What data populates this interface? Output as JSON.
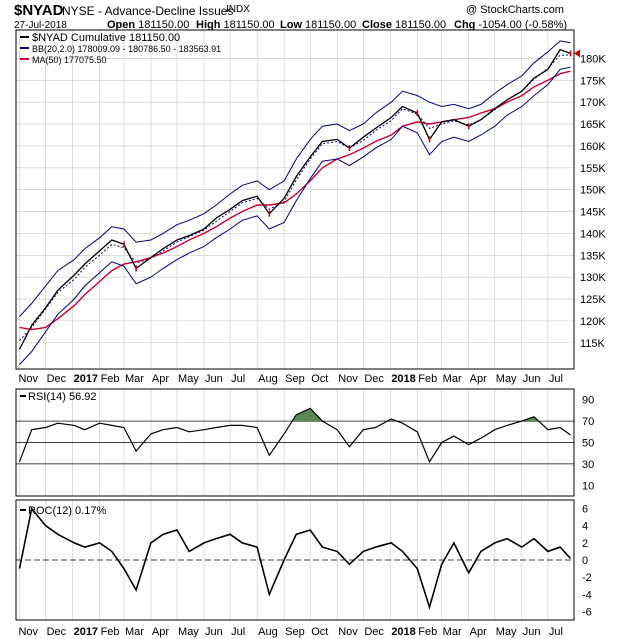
{
  "header": {
    "symbol": "$NYAD",
    "name": "NYSE - Advance-Decline Issues",
    "exchange": "INDX",
    "brand": "@ StockCharts.com",
    "date": "27-Jul-2018",
    "open_label": "Open",
    "open": "181150.00",
    "high_label": "High",
    "high": "181150.00",
    "low_label": "Low",
    "low": "181150.00",
    "close_label": "Close",
    "close": "181150.00",
    "chg_label": "Chg",
    "chg": "-1054.00 (-0.58%)"
  },
  "colors": {
    "price": "#000000",
    "down_bar": "#cc0000",
    "bollinger": "#000080",
    "ma": "#cc0033",
    "rsi_fill": "#5a8a50",
    "grid": "#c8c8c8"
  },
  "chart_data": [
    {
      "type": "line",
      "panel": "price",
      "x_labels": [
        "Nov",
        "Dec",
        "2017",
        "Feb",
        "Mar",
        "Apr",
        "May",
        "Jun",
        "Jul",
        "Aug",
        "Sep",
        "Oct",
        "Nov",
        "Dec",
        "2018",
        "Feb",
        "Mar",
        "Apr",
        "May",
        "Jun",
        "Jul"
      ],
      "bold_x_labels": [
        "2017",
        "2018"
      ],
      "y_ticks": [
        115000,
        120000,
        125000,
        130000,
        135000,
        140000,
        145000,
        150000,
        155000,
        160000,
        165000,
        170000,
        175000,
        180000
      ],
      "y_tick_labels": [
        "115K",
        "120K",
        "125K",
        "130K",
        "135K",
        "140K",
        "145K",
        "150K",
        "155K",
        "160K",
        "165K",
        "170K",
        "175K",
        "180K"
      ],
      "ylim": [
        109000,
        186500
      ],
      "legend": [
        "$NYAD Cumulative 181150.00",
        "BB(20,2.0) 178009.09 - 180786.50 - 183563.91",
        "MA(50) 177075.50"
      ],
      "dates": [
        "2016-11-01",
        "2016-11-15",
        "2016-12-01",
        "2016-12-15",
        "2017-01-03",
        "2017-01-15",
        "2017-02-01",
        "2017-02-15",
        "2017-03-01",
        "2017-03-15",
        "2017-04-01",
        "2017-04-15",
        "2017-05-01",
        "2017-05-15",
        "2017-06-01",
        "2017-06-15",
        "2017-07-01",
        "2017-07-15",
        "2017-08-01",
        "2017-08-15",
        "2017-09-01",
        "2017-09-15",
        "2017-10-01",
        "2017-10-15",
        "2017-11-01",
        "2017-11-15",
        "2017-12-01",
        "2017-12-15",
        "2018-01-02",
        "2018-01-15",
        "2018-02-01",
        "2018-02-15",
        "2018-03-01",
        "2018-03-15",
        "2018-04-01",
        "2018-04-15",
        "2018-05-01",
        "2018-05-15",
        "2018-06-01",
        "2018-06-15",
        "2018-07-01",
        "2018-07-15",
        "2018-07-27"
      ],
      "series": [
        {
          "name": "$NYAD Cumulative",
          "values": [
            113500,
            119000,
            123000,
            127000,
            130500,
            133000,
            136000,
            138500,
            137500,
            132000,
            134500,
            136500,
            138500,
            139500,
            141000,
            143500,
            145500,
            147500,
            148500,
            144500,
            148000,
            153000,
            157500,
            161000,
            161500,
            159500,
            162000,
            164000,
            166500,
            169000,
            167500,
            161500,
            165500,
            166000,
            164500,
            166000,
            168500,
            170500,
            172500,
            175500,
            177500,
            182000,
            181150
          ]
        },
        {
          "name": "BB Upper",
          "values": [
            121000,
            124000,
            128000,
            131500,
            134000,
            136500,
            139000,
            141500,
            141000,
            138000,
            138500,
            140000,
            142000,
            143000,
            144500,
            146500,
            149000,
            151000,
            152000,
            150000,
            152000,
            157000,
            161500,
            164500,
            165000,
            163500,
            165000,
            167500,
            170000,
            172500,
            171500,
            170000,
            169000,
            169500,
            168500,
            169500,
            172000,
            174000,
            176000,
            179000,
            181500,
            184000,
            183564
          ]
        },
        {
          "name": "BB Lower",
          "values": [
            110000,
            113000,
            117500,
            121500,
            125000,
            128000,
            131000,
            133500,
            132500,
            128500,
            130000,
            132000,
            134000,
            135500,
            137000,
            139000,
            141000,
            143000,
            144000,
            141000,
            142500,
            147500,
            152500,
            156500,
            157000,
            155500,
            157500,
            159500,
            161500,
            164500,
            163000,
            158000,
            161000,
            162000,
            161000,
            162500,
            164500,
            167000,
            169000,
            171500,
            174000,
            177500,
            178009
          ]
        },
        {
          "name": "MA(50)",
          "values": [
            118500,
            118000,
            118500,
            120500,
            123500,
            126000,
            129000,
            131500,
            133000,
            133500,
            134500,
            135500,
            137000,
            138500,
            140000,
            141500,
            143500,
            145000,
            146500,
            146500,
            147000,
            149000,
            152000,
            155000,
            157000,
            158000,
            159500,
            161000,
            162500,
            164500,
            165500,
            165000,
            165500,
            166000,
            166500,
            167500,
            168500,
            170000,
            171500,
            173500,
            175000,
            176500,
            177075
          ]
        }
      ]
    },
    {
      "type": "line",
      "panel": "rsi",
      "legend": "RSI(14) 56.92",
      "y_ticks": [
        10,
        30,
        50,
        70,
        90
      ],
      "ylim": [
        0,
        100
      ],
      "reference_lines": [
        30,
        50,
        70
      ],
      "fill_above": 70,
      "dates": [
        "2016-11-01",
        "2016-11-15",
        "2016-12-01",
        "2016-12-15",
        "2017-01-03",
        "2017-01-15",
        "2017-02-01",
        "2017-02-15",
        "2017-03-01",
        "2017-03-15",
        "2017-04-01",
        "2017-04-15",
        "2017-05-01",
        "2017-05-15",
        "2017-06-01",
        "2017-06-15",
        "2017-07-01",
        "2017-07-15",
        "2017-08-01",
        "2017-08-15",
        "2017-09-01",
        "2017-09-15",
        "2017-10-01",
        "2017-10-15",
        "2017-11-01",
        "2017-11-15",
        "2017-12-01",
        "2017-12-15",
        "2018-01-02",
        "2018-01-15",
        "2018-02-01",
        "2018-02-15",
        "2018-03-01",
        "2018-03-15",
        "2018-04-01",
        "2018-04-15",
        "2018-05-01",
        "2018-05-15",
        "2018-06-01",
        "2018-06-15",
        "2018-07-01",
        "2018-07-15",
        "2018-07-27"
      ],
      "values": [
        32,
        62,
        64,
        68,
        66,
        62,
        68,
        66,
        64,
        42,
        58,
        62,
        64,
        60,
        62,
        64,
        66,
        66,
        64,
        38,
        58,
        76,
        82,
        70,
        62,
        46,
        62,
        64,
        72,
        68,
        60,
        32,
        50,
        56,
        48,
        54,
        62,
        66,
        70,
        74,
        62,
        64,
        57
      ]
    },
    {
      "type": "line",
      "panel": "roc",
      "legend": "ROC(12) 0.17%",
      "y_ticks": [
        -6,
        -4,
        -2,
        0,
        2,
        4,
        6
      ],
      "ylim": [
        -7,
        7
      ],
      "reference_lines": [
        0
      ],
      "dates": [
        "2016-11-01",
        "2016-11-15",
        "2016-12-01",
        "2016-12-15",
        "2017-01-03",
        "2017-01-15",
        "2017-02-01",
        "2017-02-15",
        "2017-03-01",
        "2017-03-15",
        "2017-04-01",
        "2017-04-15",
        "2017-05-01",
        "2017-05-15",
        "2017-06-01",
        "2017-06-15",
        "2017-07-01",
        "2017-07-15",
        "2017-08-01",
        "2017-08-15",
        "2017-09-01",
        "2017-09-15",
        "2017-10-01",
        "2017-10-15",
        "2017-11-01",
        "2017-11-15",
        "2017-12-01",
        "2017-12-15",
        "2018-01-02",
        "2018-01-15",
        "2018-02-01",
        "2018-02-15",
        "2018-03-01",
        "2018-03-15",
        "2018-04-01",
        "2018-04-15",
        "2018-05-01",
        "2018-05-15",
        "2018-06-01",
        "2018-06-15",
        "2018-07-01",
        "2018-07-15",
        "2018-07-27"
      ],
      "values": [
        -1,
        6,
        4,
        3,
        2,
        1.5,
        2,
        1,
        -1,
        -3.5,
        2,
        3,
        3.5,
        1,
        2,
        2.5,
        3,
        2,
        1.5,
        -4,
        0,
        3,
        3.5,
        1.5,
        1,
        -0.5,
        1,
        1.5,
        2,
        1,
        -1,
        -5.5,
        -0.5,
        2,
        -1.5,
        1,
        2,
        2.5,
        1.5,
        2.5,
        1,
        1.5,
        0.17
      ]
    }
  ]
}
